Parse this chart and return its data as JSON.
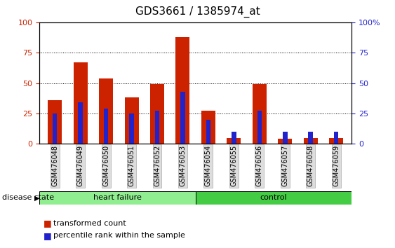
{
  "title": "GDS3661 / 1385974_at",
  "samples": [
    "GSM476048",
    "GSM476049",
    "GSM476050",
    "GSM476051",
    "GSM476052",
    "GSM476053",
    "GSM476054",
    "GSM476055",
    "GSM476056",
    "GSM476057",
    "GSM476058",
    "GSM476059"
  ],
  "red_values": [
    36,
    67,
    54,
    38,
    49,
    88,
    27,
    5,
    49,
    4,
    5,
    5
  ],
  "blue_values": [
    25,
    34,
    29,
    25,
    27,
    43,
    20,
    10,
    27,
    10,
    10,
    10
  ],
  "groups": [
    {
      "label": "heart failure",
      "start": 0,
      "end": 6,
      "color": "#90EE90"
    },
    {
      "label": "control",
      "start": 6,
      "end": 12,
      "color": "#44CC44"
    }
  ],
  "red_color": "#CC2200",
  "blue_color": "#2222CC",
  "ylim": [
    0,
    100
  ],
  "yticks": [
    0,
    25,
    50,
    75,
    100
  ],
  "ytick_labels_left": [
    "0",
    "25",
    "50",
    "75",
    "100"
  ],
  "ytick_labels_right": [
    "0",
    "25",
    "50",
    "75",
    "100%"
  ],
  "left_axis_color": "#CC2200",
  "right_axis_color": "#2222CC",
  "red_bar_width": 0.55,
  "blue_bar_width": 0.18,
  "legend_items": [
    "transformed count",
    "percentile rank within the sample"
  ],
  "disease_state_label": "disease state",
  "title_fontsize": 11,
  "tick_fontsize": 8,
  "sample_fontsize": 7,
  "label_fontsize": 8,
  "group_fontsize": 8
}
